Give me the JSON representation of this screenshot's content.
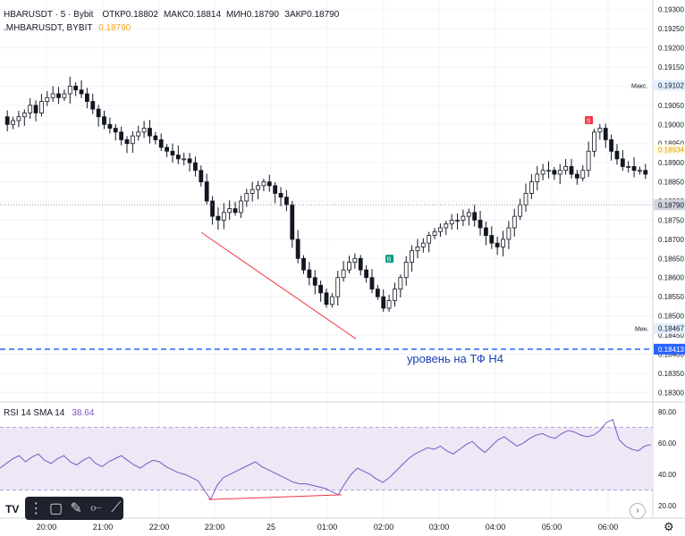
{
  "legend": {
    "symbol": "HBARUSDT · 5 · Bybit",
    "open_label": "ОТКР",
    "open": "0.18802",
    "high_label": "МАКС",
    "high": "0.18814",
    "low_label": "МИН",
    "low": "0.18790",
    "close_label": "ЗАКР",
    "close": "0.18790",
    "ma_symbol": ".MHBARUSDT, BYBIT",
    "ma_value": "0.18790"
  },
  "rsi_legend": {
    "label": "RSI 14 SMA 14",
    "value": "38.64"
  },
  "annotation": "уровень на ТФ Н4",
  "colors": {
    "up": "#ffffff",
    "down": "#131722",
    "level": "#2962ff",
    "trend": "#f23645",
    "rsi": "#7e57c2",
    "rsi_band": "#ede7f6"
  },
  "chart_data": [
    {
      "type": "candlestick",
      "title": "HBARUSDT · 5 · Bybit",
      "ylim": [
        0.18275,
        0.19325
      ],
      "y_ticks": [
        "0.19300",
        "0.19250",
        "0.19200",
        "0.19150",
        "0.19100",
        "0.19050",
        "0.19000",
        "0.18950",
        "0.18900",
        "0.18850",
        "0.18800",
        "0.18750",
        "0.18700",
        "0.18650",
        "0.18600",
        "0.18550",
        "0.18500",
        "0.18450",
        "0.18400",
        "0.18350",
        "0.18300"
      ],
      "x_ticks": [
        "20:00",
        "21:00",
        "22:00",
        "23:00",
        "25",
        "01:00",
        "02:00",
        "03:00",
        "04:00",
        "05:00",
        "06:00"
      ],
      "close_series": [
        0.19,
        0.1901,
        0.1902,
        0.1903,
        0.1905,
        0.1903,
        0.1906,
        0.1907,
        0.1908,
        0.1907,
        0.1908,
        0.191,
        0.1909,
        0.1908,
        0.1906,
        0.1904,
        0.1902,
        0.19,
        0.1899,
        0.1898,
        0.1896,
        0.1895,
        0.1897,
        0.1898,
        0.1899,
        0.1897,
        0.1896,
        0.1894,
        0.1893,
        0.1892,
        0.1891,
        0.1891,
        0.189,
        0.1888,
        0.1885,
        0.188,
        0.1876,
        0.1875,
        0.1877,
        0.1878,
        0.1877,
        0.188,
        0.1882,
        0.1883,
        0.1884,
        0.1885,
        0.1884,
        0.1882,
        0.1881,
        0.1879,
        0.187,
        0.1865,
        0.1862,
        0.186,
        0.1858,
        0.1856,
        0.1853,
        0.1855,
        0.186,
        0.1862,
        0.1864,
        0.1865,
        0.1862,
        0.186,
        0.1857,
        0.1855,
        0.1852,
        0.1854,
        0.1857,
        0.186,
        0.1864,
        0.1867,
        0.1868,
        0.1869,
        0.1871,
        0.1872,
        0.1873,
        0.1874,
        0.1875,
        0.1875,
        0.1876,
        0.1877,
        0.1875,
        0.1873,
        0.1871,
        0.1869,
        0.1868,
        0.187,
        0.1873,
        0.1876,
        0.1879,
        0.1882,
        0.1885,
        0.1887,
        0.1888,
        0.1888,
        0.1887,
        0.1888,
        0.1889,
        0.1887,
        0.1886,
        0.1888,
        0.1893,
        0.1898,
        0.1899,
        0.1896,
        0.1893,
        0.1891,
        0.1889,
        0.1889,
        0.1888,
        0.1888,
        0.1887
      ],
      "max_label": "Макс.",
      "max_value": "0.19102",
      "min_label": "Мин.",
      "min_value": "0.18467",
      "current_price": "0.18934",
      "ma_price": "0.18790",
      "level_price": "0.18413",
      "markers": [
        "S",
        "B"
      ]
    },
    {
      "type": "line",
      "title": "RSI 14 SMA 14",
      "ylim": [
        15,
        85
      ],
      "y_ticks": [
        "80.00",
        "60.00",
        "40.00",
        "20.00"
      ],
      "band": [
        30,
        70
      ],
      "values": [
        44,
        47,
        50,
        52,
        48,
        51,
        53,
        49,
        47,
        50,
        52,
        48,
        46,
        49,
        51,
        47,
        45,
        48,
        50,
        52,
        49,
        46,
        44,
        47,
        49,
        48,
        45,
        43,
        41,
        40,
        38,
        36,
        30,
        24,
        33,
        38,
        40,
        42,
        44,
        46,
        48,
        45,
        43,
        41,
        39,
        37,
        35,
        34,
        34,
        33,
        32,
        31,
        29,
        27,
        34,
        40,
        44,
        42,
        40,
        37,
        35,
        38,
        42,
        46,
        50,
        53,
        55,
        57,
        56,
        58,
        55,
        53,
        56,
        59,
        61,
        57,
        54,
        58,
        62,
        64,
        61,
        58,
        60,
        63,
        65,
        66,
        64,
        63,
        66,
        68,
        67,
        65,
        64,
        65,
        68,
        73,
        75,
        62,
        58,
        56,
        55,
        58,
        59
      ],
      "value": "38.64"
    }
  ]
}
